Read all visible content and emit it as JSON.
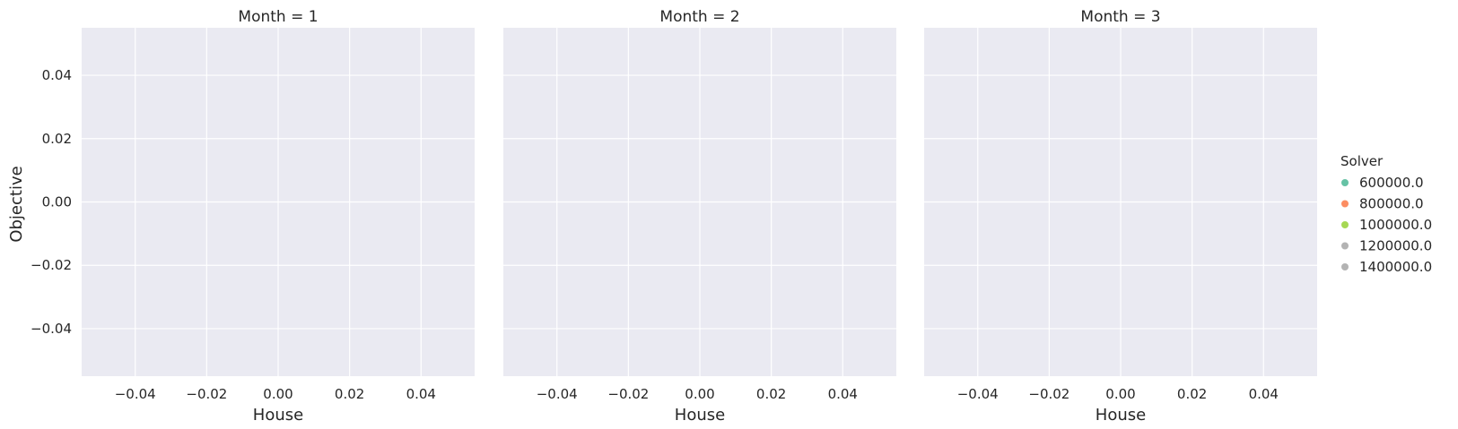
{
  "chart_data": {
    "type": "scatter",
    "ylabel": "Objective",
    "panels": [
      {
        "title": "Month = 1",
        "xlabel": "House",
        "xlim": [
          -0.055,
          0.055
        ],
        "ylim": [
          -0.055,
          0.055
        ],
        "xticks": [
          -0.04,
          -0.02,
          0.0,
          0.02,
          0.04
        ],
        "xtick_labels": [
          "−0.04",
          "−0.02",
          "0.00",
          "0.02",
          "0.04"
        ],
        "points": []
      },
      {
        "title": "Month = 2",
        "xlabel": "House",
        "xlim": [
          -0.055,
          0.055
        ],
        "ylim": [
          -0.055,
          0.055
        ],
        "xticks": [
          -0.04,
          -0.02,
          0.0,
          0.02,
          0.04
        ],
        "xtick_labels": [
          "−0.04",
          "−0.02",
          "0.00",
          "0.02",
          "0.04"
        ],
        "points": []
      },
      {
        "title": "Month = 3",
        "xlabel": "House",
        "xlim": [
          -0.055,
          0.055
        ],
        "ylim": [
          -0.055,
          0.055
        ],
        "xticks": [
          -0.04,
          -0.02,
          0.0,
          0.02,
          0.04
        ],
        "xtick_labels": [
          "−0.04",
          "−0.02",
          "0.00",
          "0.02",
          "0.04"
        ],
        "points": []
      }
    ],
    "yticks": [
      -0.04,
      -0.02,
      0.0,
      0.02,
      0.04
    ],
    "ytick_labels": [
      "−0.04",
      "−0.02",
      "0.00",
      "0.02",
      "0.04"
    ],
    "grid": true,
    "legend": {
      "title": "Solver",
      "placement": "right",
      "entries": [
        {
          "label": "600000.0",
          "color": "#66c2a5"
        },
        {
          "label": "800000.0",
          "color": "#fc8d62"
        },
        {
          "label": "1000000.0",
          "color": "#a6d854"
        },
        {
          "label": "1200000.0",
          "color": "#b3b3b3"
        },
        {
          "label": "1400000.0",
          "color": "#b3b3b3"
        }
      ]
    },
    "colors": {
      "panel_background": "#eaeaf2",
      "grid": "#ffffff"
    }
  }
}
